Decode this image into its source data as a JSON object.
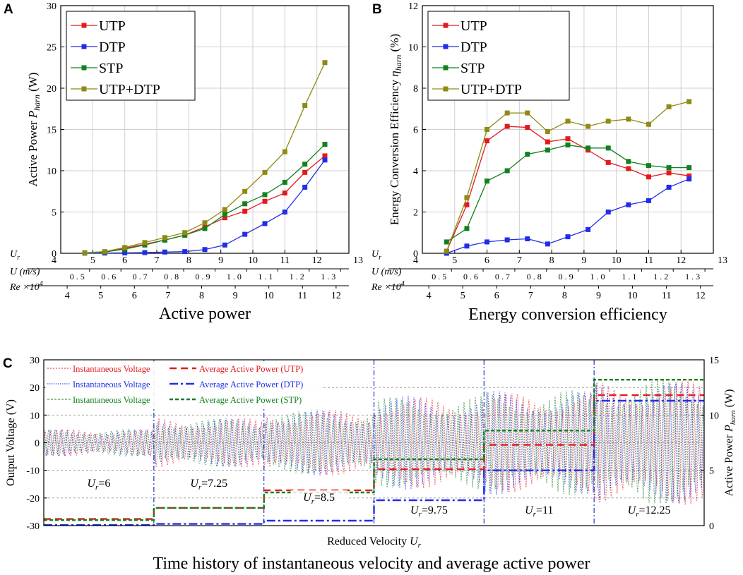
{
  "panel_letters": {
    "a": "A",
    "b": "B",
    "c": "C"
  },
  "colors": {
    "UTP": "#e31a1c",
    "DTP": "#1f2ee8",
    "STP": "#12801f",
    "UTP+DTP": "#8f8a12",
    "grid": "#cfcfcf",
    "axis": "#000000"
  },
  "chart_data": [
    {
      "id": "A",
      "type": "line",
      "caption": "Active power",
      "ylabel_main": "Active Power ",
      "ylabel_var": "P",
      "ylabel_sub": "harn",
      "ylabel_unit": " (W)",
      "ylim": [
        0,
        30
      ],
      "yticks": [
        0,
        5,
        10,
        15,
        20,
        25,
        30
      ],
      "xlim": [
        4,
        13
      ],
      "xticks": [
        4,
        5,
        6,
        7,
        8,
        9,
        10,
        11,
        12,
        13
      ],
      "axis_label_ur": "U",
      "axis_label_ur_sub": "r",
      "axis_label_u": "U (m/s)",
      "axis_label_re": "Re ×10",
      "axis_label_re_sup": "4",
      "u_axis": {
        "ticks": [
          {
            "label": "0.5",
            "ur": 4.9
          },
          {
            "label": "0.6",
            "ur": 5.88
          },
          {
            "label": "0.7",
            "ur": 6.86
          },
          {
            "label": "0.8",
            "ur": 7.84
          },
          {
            "label": "0.9",
            "ur": 8.82
          },
          {
            "label": "1.0",
            "ur": 9.8
          },
          {
            "label": "1.1",
            "ur": 10.78
          },
          {
            "label": "1.2",
            "ur": 11.76
          },
          {
            "label": "1.3",
            "ur": 12.74
          }
        ]
      },
      "re_axis": {
        "ticks": [
          {
            "label": "4",
            "ur": 4.2
          },
          {
            "label": "5",
            "ur": 5.25
          },
          {
            "label": "6",
            "ur": 6.3
          },
          {
            "label": "7",
            "ur": 7.35
          },
          {
            "label": "8",
            "ur": 8.4
          },
          {
            "label": "9",
            "ur": 9.45
          },
          {
            "label": "10",
            "ur": 10.5
          },
          {
            "label": "11",
            "ur": 11.55
          },
          {
            "label": "12",
            "ur": 12.6
          }
        ]
      },
      "legend_position": "top-left",
      "x": [
        4.75,
        5.375,
        6.0,
        6.625,
        7.25,
        7.875,
        8.5,
        9.125,
        9.75,
        10.375,
        11.0,
        11.625,
        12.25
      ],
      "series": [
        {
          "name": "UTP",
          "values": [
            0.05,
            0.15,
            0.6,
            1.1,
            1.6,
            2.2,
            3.2,
            4.3,
            5.1,
            6.3,
            7.3,
            9.8,
            11.8
          ]
        },
        {
          "name": "DTP",
          "values": [
            0.02,
            0.03,
            0.05,
            0.08,
            0.15,
            0.2,
            0.45,
            1.0,
            2.3,
            3.6,
            5.0,
            8.0,
            11.3
          ]
        },
        {
          "name": "STP",
          "values": [
            0.05,
            0.15,
            0.5,
            1.0,
            1.6,
            2.2,
            3.0,
            4.7,
            6.0,
            7.1,
            8.6,
            10.8,
            13.2
          ]
        },
        {
          "name": "UTP+DTP",
          "values": [
            0.07,
            0.2,
            0.7,
            1.3,
            1.9,
            2.5,
            3.7,
            5.3,
            7.5,
            9.8,
            12.3,
            17.9,
            23.1
          ]
        }
      ]
    },
    {
      "id": "B",
      "type": "line",
      "caption": "Energy conversion efficiency",
      "ylabel_main": "Energy Conversion Efficiency  ",
      "ylabel_var": "η",
      "ylabel_sub": "harn",
      "ylabel_unit": " (%)",
      "ylim": [
        0,
        12
      ],
      "yticks": [
        0,
        2,
        4,
        6,
        8,
        10,
        12
      ],
      "xlim": [
        4,
        13
      ],
      "xticks": [
        4,
        5,
        6,
        7,
        8,
        9,
        10,
        11,
        12,
        13
      ],
      "legend_position": "top-left",
      "x": [
        4.75,
        5.375,
        6.0,
        6.625,
        7.25,
        7.875,
        8.5,
        9.125,
        9.75,
        10.375,
        11.0,
        11.625,
        12.25
      ],
      "series": [
        {
          "name": "UTP",
          "values": [
            0.1,
            2.35,
            5.45,
            6.15,
            6.1,
            5.4,
            5.55,
            5.0,
            4.4,
            4.1,
            3.7,
            3.9,
            3.75
          ]
        },
        {
          "name": "DTP",
          "values": [
            0.0,
            0.35,
            0.55,
            0.65,
            0.7,
            0.45,
            0.8,
            1.15,
            2.0,
            2.35,
            2.55,
            3.2,
            3.6
          ]
        },
        {
          "name": "STP",
          "values": [
            0.55,
            1.2,
            3.5,
            4.0,
            4.8,
            5.0,
            5.25,
            5.1,
            5.1,
            4.45,
            4.25,
            4.15,
            4.15
          ]
        },
        {
          "name": "UTP+DTP",
          "values": [
            0.1,
            2.7,
            6.0,
            6.8,
            6.8,
            5.9,
            6.4,
            6.15,
            6.4,
            6.5,
            6.25,
            7.1,
            7.35
          ]
        }
      ]
    },
    {
      "id": "C",
      "type": "line",
      "caption": "Time history of instantaneous velocity and average active power",
      "xlabel_main": "Reduced Velocity ",
      "xlabel_var": "U",
      "xlabel_sub": "r",
      "ylabel_left": "Output Voltage   (V)",
      "ylabel_right_main": "Active Power ",
      "ylabel_right_var": "P",
      "ylabel_right_sub": "harn",
      "ylabel_right_unit": " (W)",
      "ylim_left": [
        -30,
        30
      ],
      "yticks_left": [
        -30,
        -20,
        -10,
        0,
        10,
        20,
        30
      ],
      "ylim_right": [
        0,
        15
      ],
      "yticks_right": [
        0,
        5,
        10,
        15
      ],
      "segments": [
        {
          "label": "U",
          "label_sub": "r",
          "label_value": "=6",
          "amplitude": 5
        },
        {
          "label": "U",
          "label_sub": "r",
          "label_value": "=7.25",
          "amplitude": 9
        },
        {
          "label": "U",
          "label_sub": "r",
          "label_value": "=8.5",
          "amplitude": 12
        },
        {
          "label": "U",
          "label_sub": "r",
          "label_value": "=9.75",
          "amplitude": 17
        },
        {
          "label": "U",
          "label_sub": "r",
          "label_value": "=11",
          "amplitude": 19
        },
        {
          "label": "U",
          "label_sub": "r",
          "label_value": "=12.25",
          "amplitude": 23
        }
      ],
      "legend_position": "top-left",
      "legend": [
        {
          "voltage_label": "Instantaneous Voltage",
          "power_label": "Average Active Power (UTP)",
          "series": "UTP"
        },
        {
          "voltage_label": "Instantaneous Voltage",
          "power_label": "Average Active Power (DTP)",
          "series": "DTP"
        },
        {
          "voltage_label": "Instantaneous Voltage",
          "power_label": "Average Active Power (STP)",
          "series": "STP"
        }
      ],
      "series": [
        {
          "name": "UTP",
          "average_power": [
            0.6,
            1.6,
            3.2,
            5.1,
            7.3,
            11.8
          ]
        },
        {
          "name": "DTP",
          "average_power": [
            0.05,
            0.15,
            0.45,
            2.3,
            5.0,
            11.3
          ]
        },
        {
          "name": "STP",
          "average_power": [
            0.5,
            1.6,
            3.0,
            6.0,
            8.6,
            13.2
          ]
        }
      ]
    }
  ]
}
